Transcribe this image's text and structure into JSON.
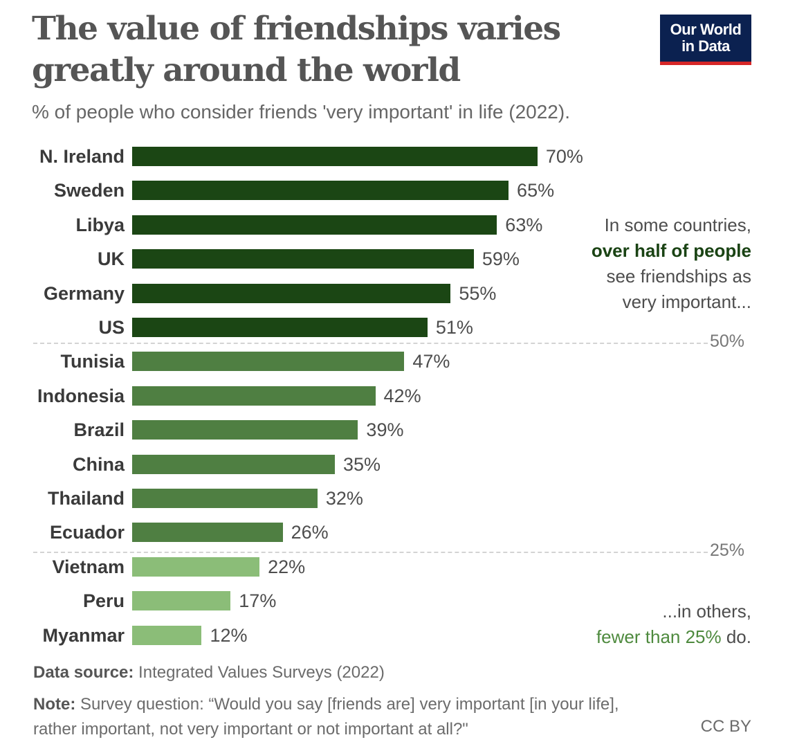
{
  "header": {
    "title": "The value of friendships varies greatly around the world",
    "subtitle": "% of people who consider friends 'very important' in life (2022).",
    "logo_line1": "Our World",
    "logo_line2": "in Data"
  },
  "colors": {
    "above_50": "#1b4614",
    "between_25_50": "#4f7f42",
    "below_25": "#8bbd78",
    "logo_bg": "#0b2150",
    "logo_accent": "#d62728"
  },
  "annotations": {
    "top_line1": "In some countries,",
    "top_highlight": "over half of people",
    "top_line3": "see friendships as",
    "top_line4": "very important...",
    "bottom_line1": "...in others,",
    "bottom_highlight": "fewer than 25%",
    "bottom_suffix": " do."
  },
  "reference_lines": [
    {
      "label": "50%",
      "value": 50
    },
    {
      "label": "25%",
      "value": 25
    }
  ],
  "footer": {
    "source_label": "Data source:",
    "source_text": " Integrated Values Surveys (2022)",
    "note_label": "Note:",
    "note_text": " Survey question: “Would you say [friends are] very important [in your life], rather important, not very important or not important at all?\"",
    "license": "CC BY"
  },
  "chart_data": {
    "type": "bar",
    "orientation": "horizontal",
    "title": "The value of friendships varies greatly around the world",
    "subtitle": "% of people who consider friends 'very important' in life (2022).",
    "xlabel": "",
    "ylabel": "",
    "categories": [
      "N. Ireland",
      "Sweden",
      "Libya",
      "UK",
      "Germany",
      "US",
      "Tunisia",
      "Indonesia",
      "Brazil",
      "China",
      "Thailand",
      "Ecuador",
      "Vietnam",
      "Peru",
      "Myanmar"
    ],
    "values": [
      70,
      65,
      63,
      59,
      55,
      51,
      47,
      42,
      39,
      35,
      32,
      26,
      22,
      17,
      12
    ],
    "value_labels": [
      "70%",
      "65%",
      "63%",
      "59%",
      "55%",
      "51%",
      "47%",
      "42%",
      "39%",
      "35%",
      "32%",
      "26%",
      "22%",
      "17%",
      "12%"
    ],
    "groups": [
      "above_50",
      "above_50",
      "above_50",
      "above_50",
      "above_50",
      "above_50",
      "between_25_50",
      "between_25_50",
      "between_25_50",
      "between_25_50",
      "between_25_50",
      "between_25_50",
      "below_25",
      "below_25",
      "below_25"
    ],
    "xlim": [
      0,
      70
    ],
    "grid": false,
    "reference_lines": [
      50,
      25
    ],
    "source": "Integrated Values Surveys (2022)"
  }
}
